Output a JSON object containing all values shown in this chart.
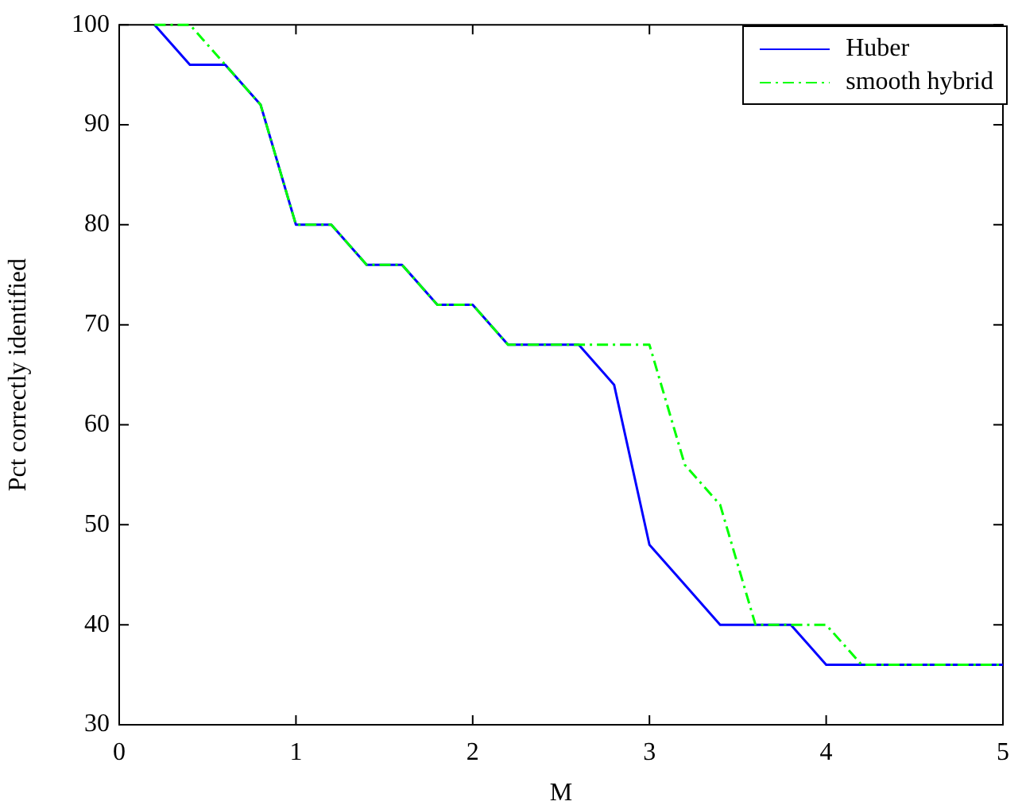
{
  "chart_data": {
    "type": "line",
    "xlabel": "M",
    "ylabel": "Pct correctly identified",
    "x": [
      0.2,
      0.4,
      0.6,
      0.8,
      1,
      1.2,
      1.4,
      1.6,
      1.8,
      2,
      2.2,
      2.4,
      2.6,
      2.8,
      3,
      3.2,
      3.4,
      3.6,
      3.8,
      4,
      4.2,
      4.4,
      4.6,
      4.8,
      5
    ],
    "series": [
      {
        "name": "Huber",
        "color": "#0000ff",
        "line_style": "solid",
        "values": [
          100,
          96,
          96,
          92,
          80,
          80,
          76,
          76,
          72,
          72,
          68,
          68,
          68,
          64,
          48,
          44,
          40,
          40,
          40,
          36,
          36,
          36,
          36,
          36,
          36
        ]
      },
      {
        "name": "smooth hybrid",
        "color": "#00ff00",
        "line_style": "dashed",
        "values": [
          100,
          100,
          96,
          92,
          80,
          80,
          76,
          76,
          72,
          72,
          68,
          68,
          68,
          68,
          68,
          56,
          52,
          40,
          40,
          40,
          36,
          36,
          36,
          36,
          36
        ]
      }
    ],
    "xlim": [
      0,
      5
    ],
    "xticks": [
      0,
      1,
      2,
      3,
      4,
      5
    ],
    "ylim": [
      30,
      100
    ],
    "yticks": [
      30,
      40,
      50,
      60,
      70,
      80,
      90,
      100
    ],
    "legend": "top right",
    "marker": "none"
  }
}
